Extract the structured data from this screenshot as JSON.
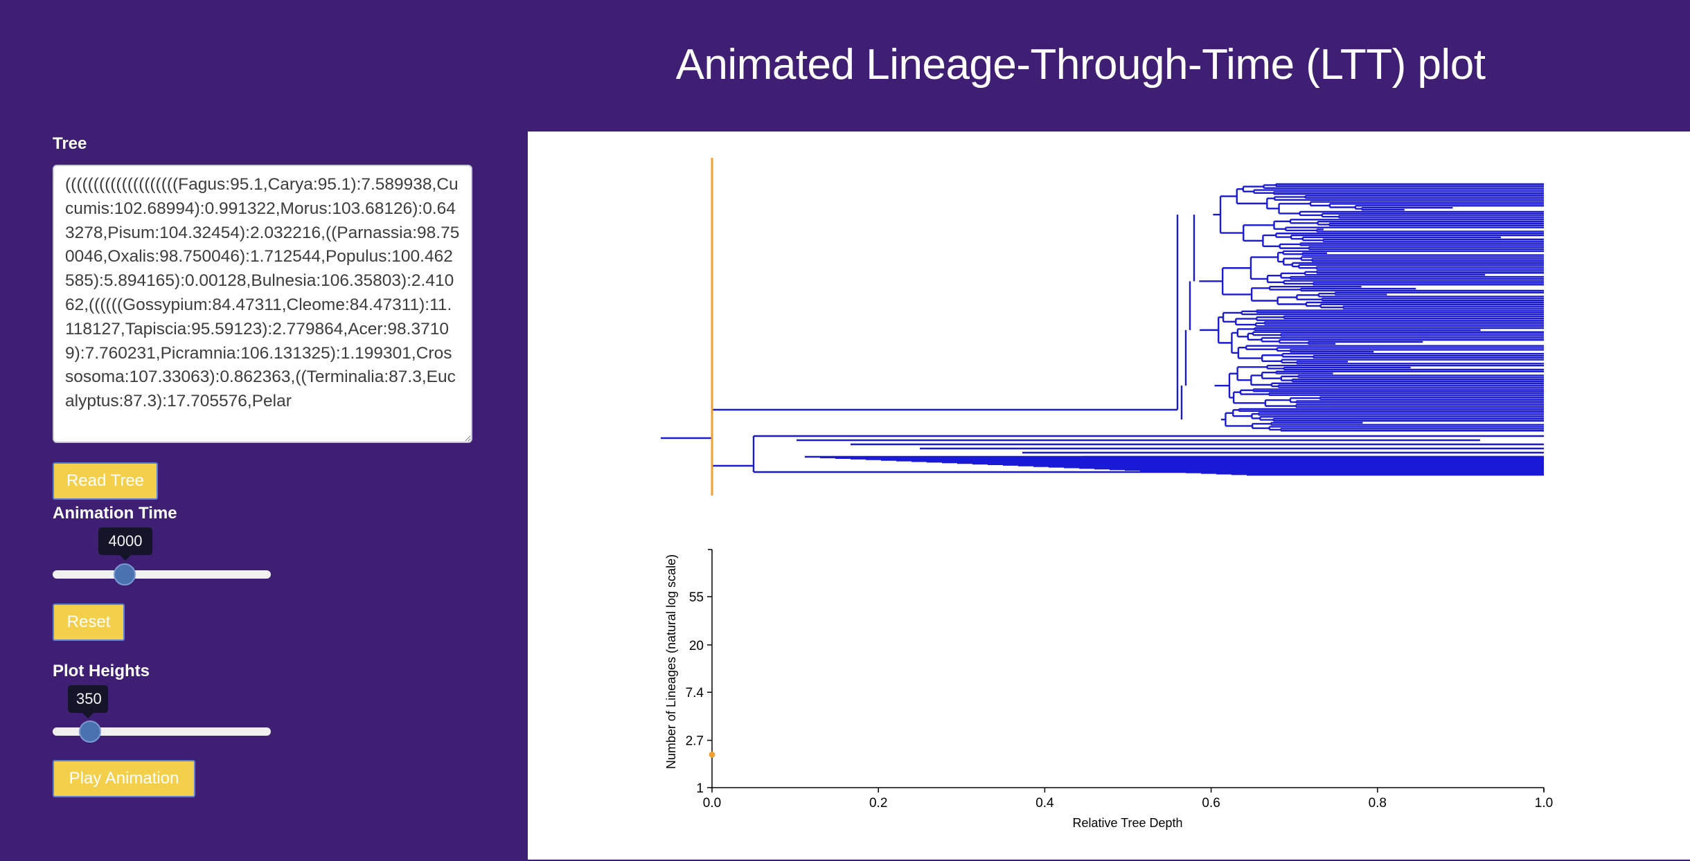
{
  "header": {
    "title": "Animated Lineage-Through-Time (LTT) plot"
  },
  "sidebar": {
    "tree_label": "Tree",
    "tree_value": "((((((((((((((((((((Fagus:95.1,Carya:95.1):7.589938,Cucumis:102.68994):0.991322,Morus:103.68126):0.643278,Pisum:104.32454):2.032216,((Parnassia:98.750046,Oxalis:98.750046):1.712544,Populus:100.462585):5.894165):0.00128,Bulnesia:106.35803):2.41062,((((((Gossypium:84.47311,Cleome:84.47311):11.118127,Tapiscia:95.59123):2.779864,Acer:98.37109):7.760231,Picramnia:106.131325):1.199301,Crossosoma:107.33063):0.862363,((Terminalia:87.3,Eucalyptus:87.3):17.705576,Pelar",
    "read_tree_label": "Read Tree",
    "animation_time_label": "Animation Time",
    "animation_time_value": "4000",
    "animation_time_fraction": 0.33,
    "reset_label": "Reset",
    "plot_heights_label": "Plot Heights",
    "plot_heights_value": "350",
    "plot_heights_fraction": 0.17,
    "play_label": "Play Animation"
  },
  "colors": {
    "background": "#3f1f74",
    "button": "#f4cf4c",
    "tree_branch": "#1a1ad6",
    "time_marker": "#f0a030"
  },
  "chart_data": {
    "type": "line",
    "xlabel": "Relative Tree Depth",
    "ylabel": "Number of Lineages (natural log scale)",
    "x_ticks": [
      "0.0",
      "0.2",
      "0.4",
      "0.6",
      "0.8",
      "1.0"
    ],
    "y_ticks": [
      "1",
      "2.7",
      "7.4",
      "20",
      "55"
    ],
    "xlim": [
      0,
      1
    ],
    "y_scale": "log",
    "ylim": [
      1,
      148
    ],
    "series": [
      {
        "x": [
          0.0
        ],
        "y": [
          2
        ]
      }
    ]
  }
}
